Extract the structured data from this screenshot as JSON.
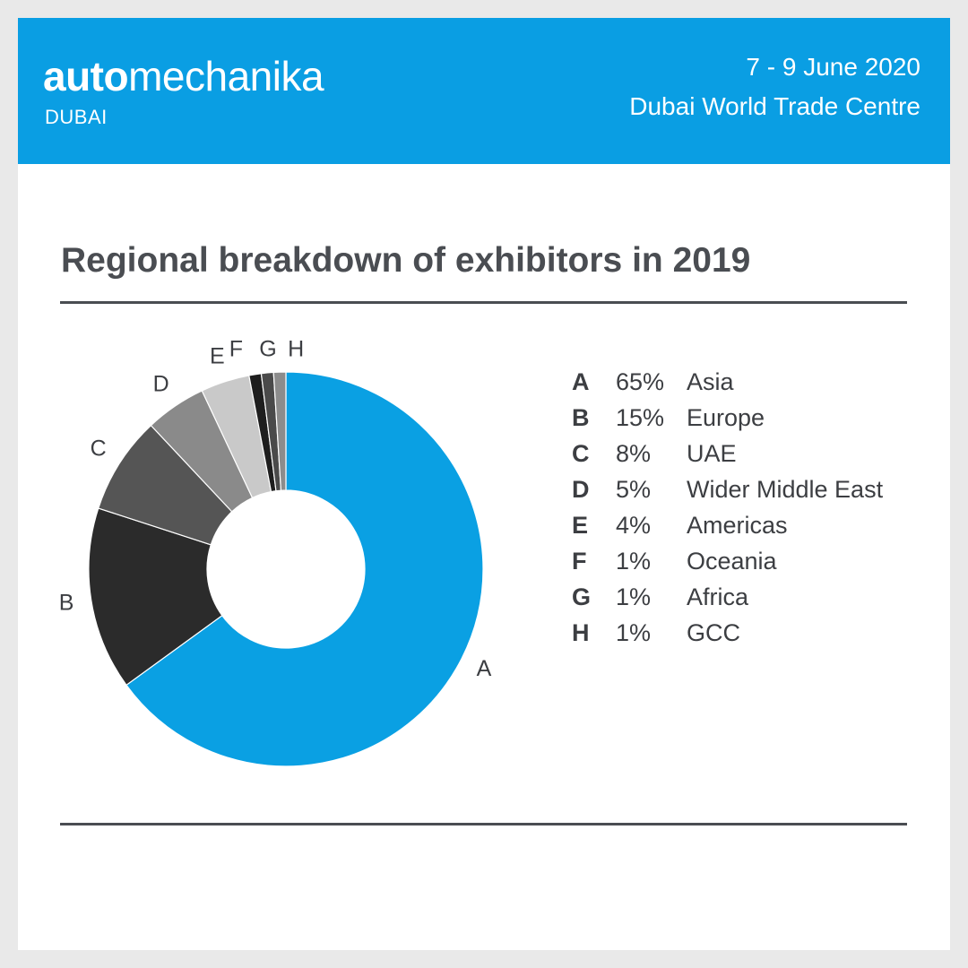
{
  "header": {
    "brand_bold": "auto",
    "brand_light": "mechanika",
    "sub_brand": "DUBAI",
    "date": "7 - 9 June 2020",
    "venue": "Dubai World Trade Centre"
  },
  "colors": {
    "header_bg": "#0a9ee3",
    "slice_colors": [
      "#0aa0e3",
      "#2b2b2b",
      "#555555",
      "#8a8a8a",
      "#c9c9c9",
      "#1e1e1e",
      "#4a4a4a",
      "#8c8c8c"
    ]
  },
  "chart_data": {
    "type": "pie",
    "title": "Regional breakdown of exhibitors in 2019",
    "style": "donut",
    "unit": "%",
    "slices": [
      {
        "key": "A",
        "label": "Asia",
        "value": 65
      },
      {
        "key": "B",
        "label": "Europe",
        "value": 15
      },
      {
        "key": "C",
        "label": "UAE",
        "value": 8
      },
      {
        "key": "D",
        "label": "Wider Middle East",
        "value": 5
      },
      {
        "key": "E",
        "label": "Americas",
        "value": 4
      },
      {
        "key": "F",
        "label": "Oceania",
        "value": 1
      },
      {
        "key": "G",
        "label": "Africa",
        "value": 1
      },
      {
        "key": "H",
        "label": "GCC",
        "value": 1
      }
    ],
    "legend": [
      {
        "letter": "A",
        "pct": "65%",
        "region": "Asia"
      },
      {
        "letter": "B",
        "pct": "15%",
        "region": "Europe"
      },
      {
        "letter": "C",
        "pct": "8%",
        "region": "UAE"
      },
      {
        "letter": "D",
        "pct": "5%",
        "region": "Wider Middle East"
      },
      {
        "letter": "E",
        "pct": "4%",
        "region": "Americas"
      },
      {
        "letter": "F",
        "pct": "1%",
        "region": "Oceania"
      },
      {
        "letter": "G",
        "pct": "1%",
        "region": "Africa"
      },
      {
        "letter": "H",
        "pct": "1%",
        "region": "GCC"
      }
    ]
  }
}
